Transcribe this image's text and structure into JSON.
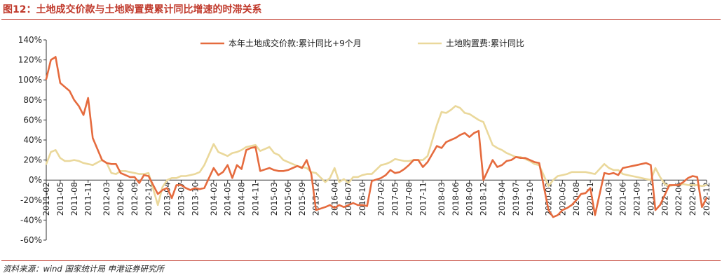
{
  "title": "图12：土地成交价款与土地购置费累计同比增速的时滞关系",
  "source": "资料来源：wind 国家统计局 申港证券研究所",
  "chart_data": {
    "type": "line",
    "ylim": [
      -0.6,
      1.4
    ],
    "yticks": [
      -0.6,
      -0.4,
      -0.2,
      0,
      0.2,
      0.4,
      0.6,
      0.8,
      1.0,
      1.2,
      1.4
    ],
    "ytick_labels": [
      "-60%",
      "-40%",
      "-20%",
      "0%",
      "20%",
      "40%",
      "60%",
      "80%",
      "100%",
      "120%",
      "140%"
    ],
    "x_start": "2011-02",
    "x_end": "2022-12",
    "xtick_labels": [
      "2011-02",
      "2011-05",
      "2011-08",
      "2011-11",
      "2012-03",
      "2012-06",
      "2012-09",
      "2012-12",
      "2013-04",
      "2013-07",
      "2013-10",
      "2014-02",
      "2014-05",
      "2014-08",
      "2014-11",
      "2015-03",
      "2015-06",
      "2015-09",
      "2015-12",
      "2016-04",
      "2016-07",
      "2016-10",
      "2017-02",
      "2017-05",
      "2017-08",
      "2017-11",
      "2018-03",
      "2018-06",
      "2018-09",
      "2018-12",
      "2019-04",
      "2019-07",
      "2019-10",
      "2020-02",
      "2020-05",
      "2020-08",
      "2020-11",
      "2021-03",
      "2021-06",
      "2021-09",
      "2021-12",
      "2022-03",
      "2022-06",
      "2022-09",
      "2022-12"
    ],
    "legend_position": "top",
    "series": [
      {
        "name": "本年土地成交价款:累计同比+9个月",
        "color": "#E56B3E",
        "points": [
          [
            "2011-02",
            1.01
          ],
          [
            "2011-03",
            1.2
          ],
          [
            "2011-04",
            1.23
          ],
          [
            "2011-05",
            0.97
          ],
          [
            "2011-06",
            0.93
          ],
          [
            "2011-07",
            0.89
          ],
          [
            "2011-08",
            0.8
          ],
          [
            "2011-09",
            0.74
          ],
          [
            "2011-10",
            0.65
          ],
          [
            "2011-11",
            0.82
          ],
          [
            "2011-12",
            0.42
          ],
          [
            "2012-02",
            0.2
          ],
          [
            "2012-03",
            0.17
          ],
          [
            "2012-04",
            0.16
          ],
          [
            "2012-05",
            0.16
          ],
          [
            "2012-06",
            0.07
          ],
          [
            "2012-07",
            0.05
          ],
          [
            "2012-08",
            0.03
          ],
          [
            "2012-09",
            0.03
          ],
          [
            "2012-10",
            -0.03
          ],
          [
            "2012-11",
            0.05
          ],
          [
            "2012-12",
            0.04
          ],
          [
            "2013-02",
            -0.14
          ],
          [
            "2013-03",
            -0.1
          ],
          [
            "2013-04",
            -0.08
          ],
          [
            "2013-05",
            -0.18
          ],
          [
            "2013-06",
            -0.05
          ],
          [
            "2013-07",
            -0.05
          ],
          [
            "2013-08",
            -0.08
          ],
          [
            "2013-09",
            -0.1
          ],
          [
            "2013-10",
            -0.08
          ],
          [
            "2013-11",
            -0.09
          ],
          [
            "2013-12",
            -0.08
          ],
          [
            "2014-02",
            0.12
          ],
          [
            "2014-03",
            0.05
          ],
          [
            "2014-04",
            0.08
          ],
          [
            "2014-05",
            0.15
          ],
          [
            "2014-06",
            0.02
          ],
          [
            "2014-07",
            0.15
          ],
          [
            "2014-08",
            0.11
          ],
          [
            "2014-09",
            0.3
          ],
          [
            "2014-10",
            0.32
          ],
          [
            "2014-11",
            0.33
          ],
          [
            "2014-12",
            0.09
          ],
          [
            "2015-02",
            0.12
          ],
          [
            "2015-03",
            0.1
          ],
          [
            "2015-04",
            0.09
          ],
          [
            "2015-05",
            0.09
          ],
          [
            "2015-06",
            0.1
          ],
          [
            "2015-07",
            0.12
          ],
          [
            "2015-08",
            0.14
          ],
          [
            "2015-09",
            0.12
          ],
          [
            "2015-10",
            0.2
          ],
          [
            "2015-11",
            0.06
          ],
          [
            "2015-12",
            -0.3
          ],
          [
            "2016-02",
            -0.27
          ],
          [
            "2016-03",
            -0.25
          ],
          [
            "2016-04",
            -0.28
          ],
          [
            "2016-05",
            -0.25
          ],
          [
            "2016-06",
            -0.27
          ],
          [
            "2016-07",
            -0.25
          ],
          [
            "2016-08",
            -0.23
          ],
          [
            "2016-09",
            -0.25
          ],
          [
            "2016-10",
            -0.25
          ],
          [
            "2016-11",
            -0.26
          ],
          [
            "2016-12",
            -0.01
          ],
          [
            "2017-02",
            0.02
          ],
          [
            "2017-03",
            0.05
          ],
          [
            "2017-04",
            0.1
          ],
          [
            "2017-05",
            0.07
          ],
          [
            "2017-06",
            0.08
          ],
          [
            "2017-07",
            0.11
          ],
          [
            "2017-08",
            0.15
          ],
          [
            "2017-09",
            0.2
          ],
          [
            "2017-10",
            0.2
          ],
          [
            "2017-11",
            0.13
          ],
          [
            "2017-12",
            0.18
          ],
          [
            "2018-02",
            0.34
          ],
          [
            "2018-03",
            0.32
          ],
          [
            "2018-04",
            0.38
          ],
          [
            "2018-05",
            0.4
          ],
          [
            "2018-06",
            0.42
          ],
          [
            "2018-07",
            0.45
          ],
          [
            "2018-08",
            0.47
          ],
          [
            "2018-09",
            0.43
          ],
          [
            "2018-10",
            0.47
          ],
          [
            "2018-11",
            0.49
          ],
          [
            "2018-12",
            0.0
          ],
          [
            "2019-02",
            0.2
          ],
          [
            "2019-03",
            0.13
          ],
          [
            "2019-04",
            0.15
          ],
          [
            "2019-05",
            0.19
          ],
          [
            "2019-06",
            0.2
          ],
          [
            "2019-07",
            0.23
          ],
          [
            "2019-08",
            0.22
          ],
          [
            "2019-09",
            0.22
          ],
          [
            "2019-10",
            0.2
          ],
          [
            "2019-11",
            0.18
          ],
          [
            "2019-12",
            0.17
          ],
          [
            "2020-02",
            -0.3
          ],
          [
            "2020-03",
            -0.37
          ],
          [
            "2020-04",
            -0.35
          ],
          [
            "2020-05",
            -0.3
          ],
          [
            "2020-06",
            -0.28
          ],
          [
            "2020-07",
            -0.25
          ],
          [
            "2020-08",
            -0.2
          ],
          [
            "2020-09",
            -0.14
          ],
          [
            "2020-10",
            -0.13
          ],
          [
            "2020-11",
            -0.08
          ],
          [
            "2020-12",
            -0.35
          ],
          [
            "2021-02",
            0.07
          ],
          [
            "2021-03",
            0.06
          ],
          [
            "2021-04",
            0.07
          ],
          [
            "2021-05",
            0.05
          ],
          [
            "2021-06",
            0.12
          ],
          [
            "2021-07",
            0.13
          ],
          [
            "2021-08",
            0.14
          ],
          [
            "2021-09",
            0.15
          ],
          [
            "2021-10",
            0.16
          ],
          [
            "2021-11",
            0.17
          ],
          [
            "2021-12",
            0.15
          ],
          [
            "2022-01",
            -0.3
          ],
          [
            "2022-02",
            -0.25
          ],
          [
            "2022-03",
            -0.15
          ],
          [
            "2022-04",
            -0.05
          ],
          [
            "2022-05",
            -0.05
          ],
          [
            "2022-06",
            -0.05
          ],
          [
            "2022-07",
            -0.02
          ],
          [
            "2022-08",
            0.02
          ],
          [
            "2022-09",
            0.04
          ],
          [
            "2022-10",
            0.03
          ],
          [
            "2022-11",
            -0.27
          ],
          [
            "2022-12",
            -0.18
          ]
        ]
      },
      {
        "name": "土地购置费:累计同比",
        "color": "#EAD89B",
        "points": [
          [
            "2011-02",
            0.16
          ],
          [
            "2011-03",
            0.28
          ],
          [
            "2011-04",
            0.3
          ],
          [
            "2011-05",
            0.22
          ],
          [
            "2011-06",
            0.19
          ],
          [
            "2011-07",
            0.19
          ],
          [
            "2011-08",
            0.2
          ],
          [
            "2011-09",
            0.19
          ],
          [
            "2011-10",
            0.17
          ],
          [
            "2011-11",
            0.16
          ],
          [
            "2011-12",
            0.15
          ],
          [
            "2012-02",
            0.2
          ],
          [
            "2012-03",
            0.17
          ],
          [
            "2012-04",
            0.07
          ],
          [
            "2012-05",
            0.06
          ],
          [
            "2012-06",
            0.09
          ],
          [
            "2012-07",
            0.09
          ],
          [
            "2012-08",
            0.08
          ],
          [
            "2012-09",
            0.07
          ],
          [
            "2012-10",
            0.06
          ],
          [
            "2012-11",
            0.06
          ],
          [
            "2012-12",
            0.07
          ],
          [
            "2013-02",
            -0.25
          ],
          [
            "2013-03",
            -0.07
          ],
          [
            "2013-04",
            0.0
          ],
          [
            "2013-05",
            0.02
          ],
          [
            "2013-06",
            0.02
          ],
          [
            "2013-07",
            0.04
          ],
          [
            "2013-08",
            0.04
          ],
          [
            "2013-09",
            0.05
          ],
          [
            "2013-10",
            0.06
          ],
          [
            "2013-11",
            0.08
          ],
          [
            "2013-12",
            0.15
          ],
          [
            "2014-02",
            0.36
          ],
          [
            "2014-03",
            0.28
          ],
          [
            "2014-04",
            0.26
          ],
          [
            "2014-05",
            0.24
          ],
          [
            "2014-06",
            0.27
          ],
          [
            "2014-07",
            0.28
          ],
          [
            "2014-08",
            0.3
          ],
          [
            "2014-09",
            0.33
          ],
          [
            "2014-10",
            0.34
          ],
          [
            "2014-11",
            0.35
          ],
          [
            "2014-12",
            0.29
          ],
          [
            "2015-02",
            0.33
          ],
          [
            "2015-03",
            0.27
          ],
          [
            "2015-04",
            0.25
          ],
          [
            "2015-05",
            0.2
          ],
          [
            "2015-06",
            0.18
          ],
          [
            "2015-07",
            0.16
          ],
          [
            "2015-08",
            0.14
          ],
          [
            "2015-09",
            0.13
          ],
          [
            "2015-10",
            0.12
          ],
          [
            "2015-11",
            0.08
          ],
          [
            "2015-12",
            0.07
          ],
          [
            "2016-02",
            -0.02
          ],
          [
            "2016-03",
            0.02
          ],
          [
            "2016-04",
            0.12
          ],
          [
            "2016-05",
            -0.02
          ],
          [
            "2016-06",
            0.01
          ],
          [
            "2016-07",
            -0.03
          ],
          [
            "2016-08",
            0.03
          ],
          [
            "2016-09",
            0.03
          ],
          [
            "2016-10",
            0.05
          ],
          [
            "2016-11",
            0.06
          ],
          [
            "2016-12",
            0.06
          ],
          [
            "2017-02",
            0.15
          ],
          [
            "2017-03",
            0.16
          ],
          [
            "2017-04",
            0.18
          ],
          [
            "2017-05",
            0.21
          ],
          [
            "2017-06",
            0.2
          ],
          [
            "2017-07",
            0.19
          ],
          [
            "2017-08",
            0.19
          ],
          [
            "2017-09",
            0.2
          ],
          [
            "2017-10",
            0.2
          ],
          [
            "2017-11",
            0.2
          ],
          [
            "2017-12",
            0.24
          ],
          [
            "2018-02",
            0.55
          ],
          [
            "2018-03",
            0.68
          ],
          [
            "2018-04",
            0.67
          ],
          [
            "2018-05",
            0.7
          ],
          [
            "2018-06",
            0.74
          ],
          [
            "2018-07",
            0.72
          ],
          [
            "2018-08",
            0.67
          ],
          [
            "2018-09",
            0.66
          ],
          [
            "2018-10",
            0.63
          ],
          [
            "2018-11",
            0.6
          ],
          [
            "2018-12",
            0.58
          ],
          [
            "2019-02",
            0.35
          ],
          [
            "2019-03",
            0.32
          ],
          [
            "2019-04",
            0.3
          ],
          [
            "2019-05",
            0.27
          ],
          [
            "2019-06",
            0.25
          ],
          [
            "2019-07",
            0.23
          ],
          [
            "2019-08",
            0.23
          ],
          [
            "2019-09",
            0.21
          ],
          [
            "2019-10",
            0.19
          ],
          [
            "2019-11",
            0.16
          ],
          [
            "2019-12",
            0.15
          ],
          [
            "2020-02",
            -0.06
          ],
          [
            "2020-03",
            0.0
          ],
          [
            "2020-04",
            0.04
          ],
          [
            "2020-05",
            0.05
          ],
          [
            "2020-06",
            0.06
          ],
          [
            "2020-07",
            0.08
          ],
          [
            "2020-08",
            0.08
          ],
          [
            "2020-09",
            0.08
          ],
          [
            "2020-10",
            0.08
          ],
          [
            "2020-11",
            0.07
          ],
          [
            "2020-12",
            0.06
          ],
          [
            "2021-02",
            0.16
          ],
          [
            "2021-03",
            0.12
          ],
          [
            "2021-04",
            0.1
          ],
          [
            "2021-05",
            0.1
          ],
          [
            "2021-06",
            0.06
          ],
          [
            "2021-07",
            0.05
          ],
          [
            "2021-08",
            0.04
          ],
          [
            "2021-09",
            0.03
          ],
          [
            "2021-10",
            0.02
          ],
          [
            "2021-11",
            0.01
          ],
          [
            "2021-12",
            0.0
          ],
          [
            "2022-01",
            0.12
          ],
          [
            "2022-02",
            0.03
          ],
          [
            "2022-03",
            -0.04
          ],
          [
            "2022-04",
            -0.06
          ],
          [
            "2022-05",
            -0.05
          ],
          [
            "2022-06",
            -0.05
          ],
          [
            "2022-07",
            -0.04
          ],
          [
            "2022-08",
            -0.05
          ],
          [
            "2022-09",
            -0.05
          ],
          [
            "2022-10",
            -0.05
          ],
          [
            "2022-11",
            -0.06
          ],
          [
            "2022-12",
            -0.05
          ]
        ]
      }
    ]
  }
}
